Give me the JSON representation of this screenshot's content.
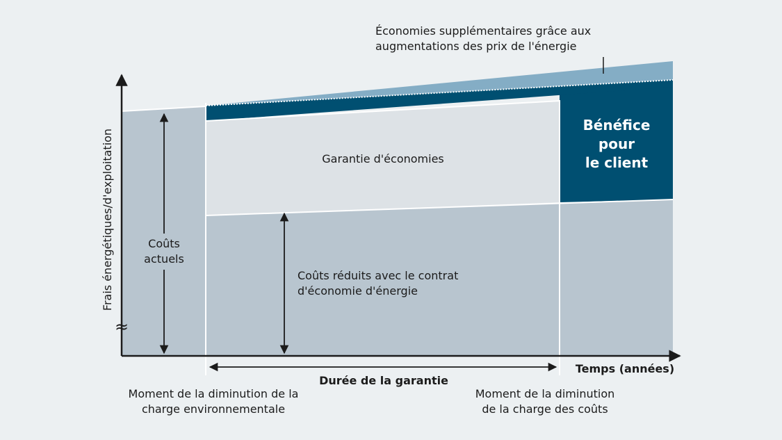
{
  "diagram": {
    "y_axis_label": "Frais énergétiques/d'exploitation",
    "x_axis_label": "Temps (années)",
    "current_costs_label": [
      "Coûts",
      "actuels"
    ],
    "savings_guarantee_label": "Garantie d'économies",
    "reduced_costs_label": [
      "Coûts réduits avec le contrat",
      "d'économie d'énergie"
    ],
    "customer_benefit_label": [
      "Bénéfice",
      "pour",
      "le client"
    ],
    "extra_savings_label": [
      "Économies supplémentaires grâce aux",
      "augmentations des prix de l'énergie"
    ],
    "guarantee_duration_label": "Durée de la garantie",
    "env_load_moment_label": [
      "Moment de la diminution de la",
      "charge environnementale"
    ],
    "cost_load_moment_label": [
      "Moment de la diminution",
      "de la charge des coûts"
    ],
    "axis_break_symbol": "≈",
    "colors": {
      "background": "#ecf0f2",
      "reduced_costs": "#b8c5cf",
      "savings_guarantee": "#dde2e6",
      "customer_benefit": "#004f71",
      "extra_savings": "#84adc5",
      "axis": "#1b1b1b"
    }
  }
}
